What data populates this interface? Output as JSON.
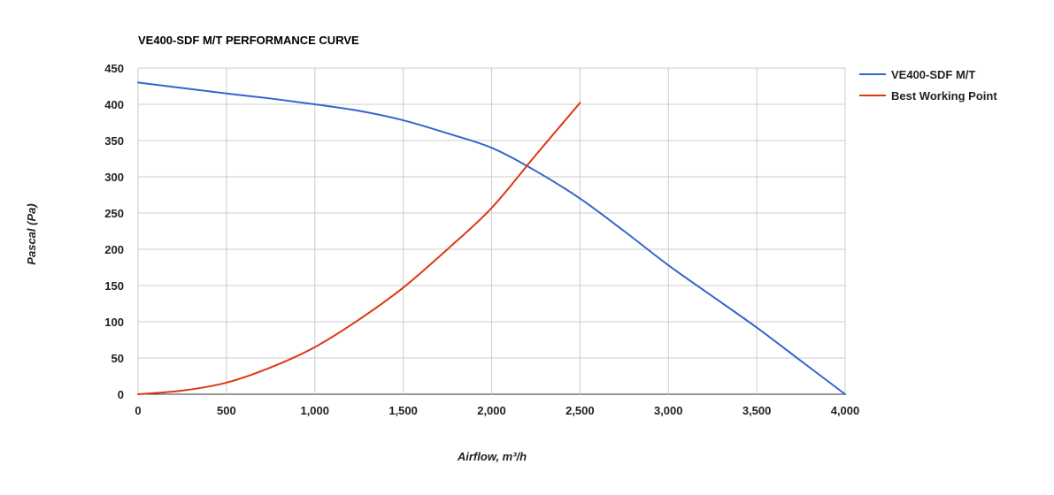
{
  "chart_data": {
    "type": "line",
    "title": "VE400-SDF M/T PERFORMANCE CURVE",
    "xlabel": "Airflow, m³/h",
    "ylabel": "Pascal (Pa)",
    "xlim": [
      0,
      4000
    ],
    "ylim": [
      0,
      450
    ],
    "x_ticks": [
      0,
      500,
      1000,
      1500,
      2000,
      2500,
      3000,
      3500,
      4000
    ],
    "x_tick_labels": [
      "0",
      "500",
      "1,000",
      "1,500",
      "2,000",
      "2,500",
      "3,000",
      "3,500",
      "4,000"
    ],
    "y_ticks": [
      0,
      50,
      100,
      150,
      200,
      250,
      300,
      350,
      400,
      450
    ],
    "y_tick_labels": [
      "0",
      "50",
      "100",
      "150",
      "200",
      "250",
      "300",
      "350",
      "400",
      "450"
    ],
    "grid": true,
    "legend_position": "right",
    "series": [
      {
        "name": "VE400-SDF M/T",
        "color": "#3366cc",
        "points": [
          [
            0,
            430
          ],
          [
            500,
            415
          ],
          [
            750,
            408
          ],
          [
            1000,
            400
          ],
          [
            1250,
            391
          ],
          [
            1500,
            378
          ],
          [
            1750,
            360
          ],
          [
            2000,
            340
          ],
          [
            2250,
            308
          ],
          [
            2500,
            270
          ],
          [
            2750,
            225
          ],
          [
            3000,
            178
          ],
          [
            3250,
            135
          ],
          [
            3500,
            92
          ],
          [
            3750,
            46
          ],
          [
            4000,
            0
          ]
        ]
      },
      {
        "name": "Best Working Point",
        "color": "#dc3912",
        "points": [
          [
            0,
            0
          ],
          [
            250,
            5
          ],
          [
            500,
            16
          ],
          [
            750,
            37
          ],
          [
            1000,
            65
          ],
          [
            1250,
            103
          ],
          [
            1500,
            147
          ],
          [
            1750,
            200
          ],
          [
            2000,
            257
          ],
          [
            2250,
            330
          ],
          [
            2500,
            402
          ]
        ]
      }
    ]
  }
}
